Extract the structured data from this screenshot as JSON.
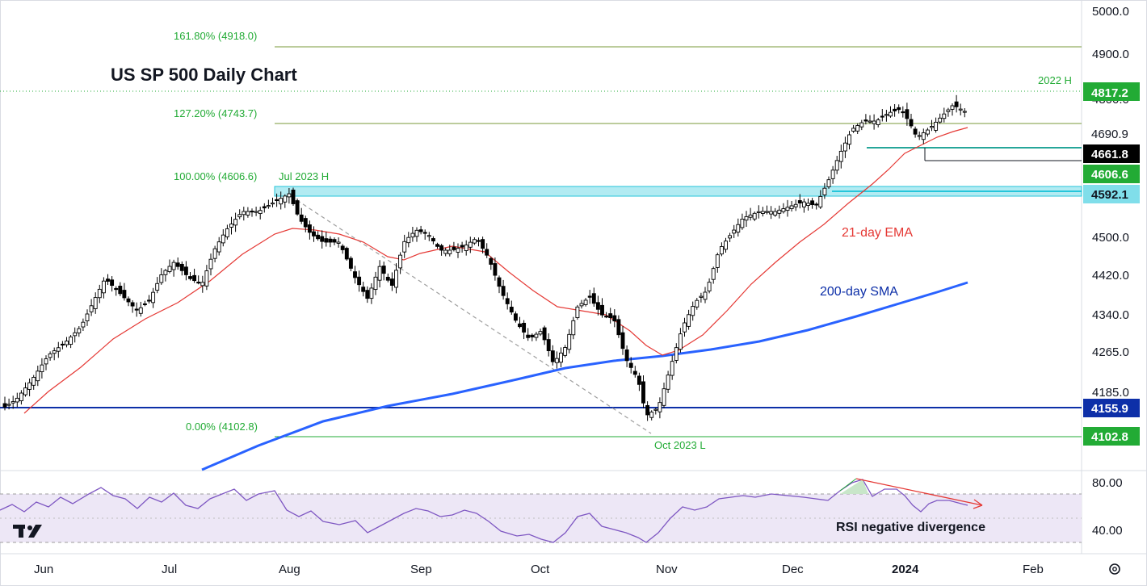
{
  "title": "US SP 500 Daily Chart",
  "colors": {
    "up_candle": "#ffffff",
    "down_candle": "#000000",
    "ema": "#e53935",
    "sma": "#2962ff",
    "fib": "#22ab35",
    "fib_line": "#7a9a3a",
    "zone_fill": "#b2ebf2",
    "rsi_line": "#7e57c2",
    "rsi_band": "#ede7f6",
    "support_blue": "#0d2fa8"
  },
  "chart_data": [
    {
      "type": "candlestick",
      "title": "US SP 500 Daily Chart",
      "x_tick_labels": [
        "Jun",
        "Jul",
        "Aug",
        "Sep",
        "Oct",
        "Nov",
        "Dec",
        "2024",
        "Feb"
      ],
      "y_tick_labels": [
        "5000.0",
        "4900.0",
        "4800.0",
        "4690.9",
        "4661.8",
        "4606.6",
        "4592.1",
        "4500.0",
        "4420.0",
        "4340.0",
        "4265.0",
        "4185.0",
        "4155.9",
        "4102.8"
      ],
      "ylim": [
        4048,
        5000
      ],
      "series": [
        {
          "name": "21-day EMA",
          "type": "line"
        },
        {
          "name": "200-day SMA",
          "type": "line"
        }
      ],
      "price_labels": [
        {
          "value": "4817.2",
          "bg": "#22ab35",
          "fg": "#ffffff"
        },
        {
          "value": "4690.9",
          "bg": "#ffffff",
          "fg": "#131722",
          "border": "#22ab35"
        },
        {
          "value": "4661.8",
          "bg": "#000000",
          "fg": "#ffffff"
        },
        {
          "value": "4606.6",
          "bg": "#22ab35",
          "fg": "#ffffff"
        },
        {
          "value": "4592.1",
          "bg": "#80deea",
          "fg": "#131722"
        },
        {
          "value": "4155.9",
          "bg": "#0d2fa8",
          "fg": "#ffffff"
        },
        {
          "value": "4102.8",
          "bg": "#22ab35",
          "fg": "#ffffff"
        }
      ],
      "fib_levels": [
        {
          "label": "161.80% (4918.0)",
          "value": 4918.0
        },
        {
          "label": "127.20% (4743.7)",
          "value": 4743.7
        },
        {
          "label": "100.00% (4606.6)",
          "value": 4606.6
        },
        {
          "label": "0.00% (4102.8)",
          "value": 4102.8
        }
      ],
      "annotations": {
        "high_2022": "2022 H",
        "jul_high": "Jul 2023 H",
        "oct_low": "Oct 2023 L",
        "ema_label": "21-day EMA",
        "sma_label": "200-day SMA"
      }
    },
    {
      "type": "line",
      "name": "RSI",
      "y_tick_labels": [
        "80.00",
        "40.00"
      ],
      "ylim": [
        30,
        90
      ],
      "upper_band": 70,
      "lower_band": 30,
      "annotation": "RSI negative divergence"
    }
  ],
  "logo_text": "TV"
}
